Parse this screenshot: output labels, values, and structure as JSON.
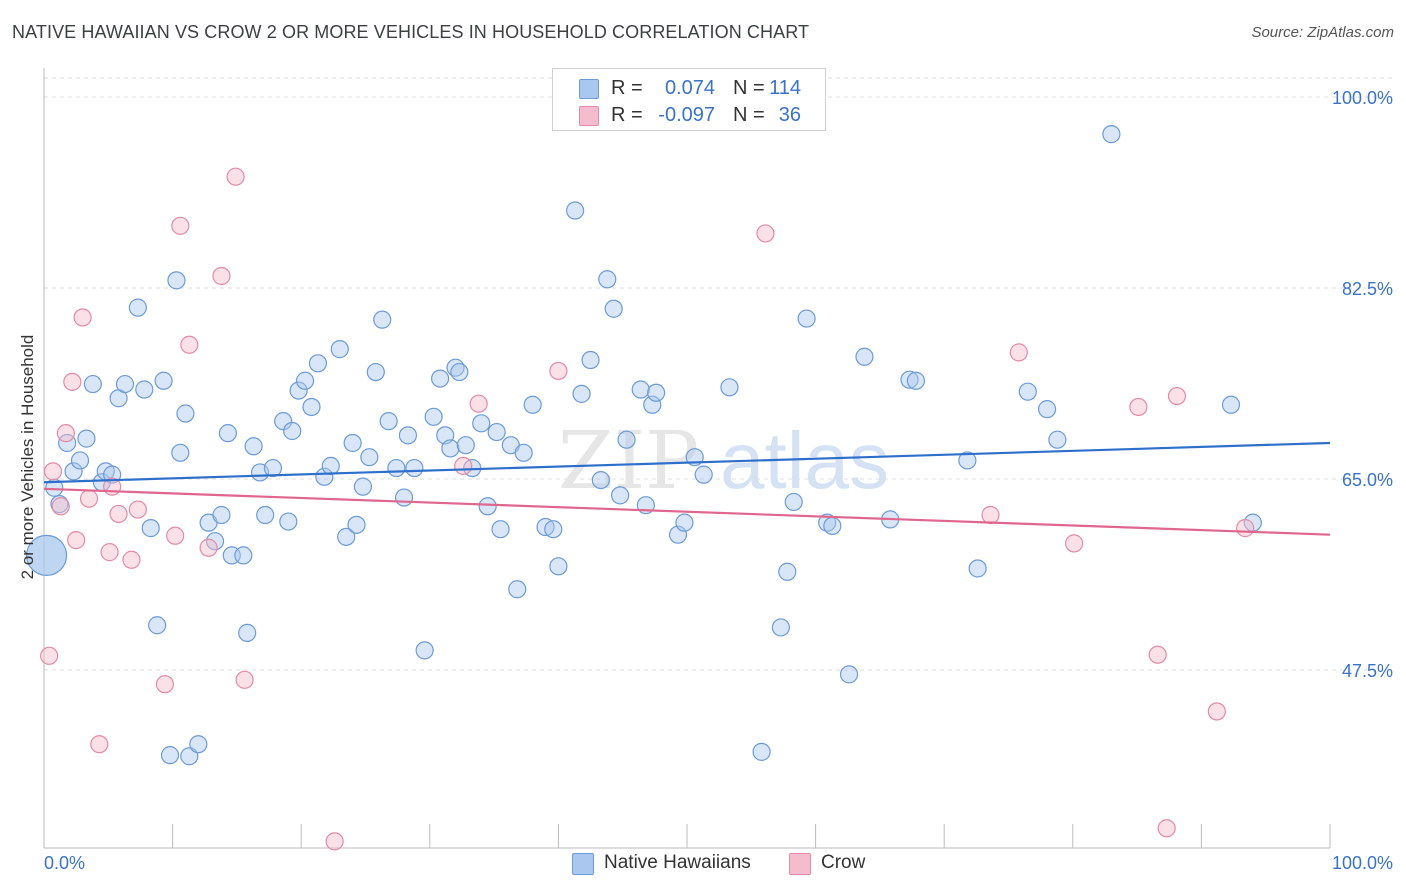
{
  "header": {
    "title": "NATIVE HAWAIIAN VS CROW 2 OR MORE VEHICLES IN HOUSEHOLD CORRELATION CHART",
    "source": "Source: ZipAtlas.com"
  },
  "legend": {
    "rows": [
      {
        "r_label": "R =",
        "r_value": "0.074",
        "n_label": "N =",
        "n_value": "114"
      },
      {
        "r_label": "R =",
        "r_value": "-0.097",
        "n_label": "N =",
        "n_value": "36"
      }
    ],
    "series_names": [
      "Native Hawaiians",
      "Crow"
    ]
  },
  "watermark": {
    "zip": "ZIP",
    "atlas": "atlas"
  },
  "colors": {
    "blue_fill": "#aac8ef",
    "blue_stroke": "#6c9bd8",
    "blue_line": "#2e6fcc",
    "pink_fill": "#f5bccd",
    "pink_stroke": "#e58aa6",
    "pink_line": "#e0668e",
    "tick_label": "#3a72c8"
  },
  "chart_data": {
    "type": "scatter",
    "title": "NATIVE HAWAIIAN VS CROW 2 OR MORE VEHICLES IN HOUSEHOLD CORRELATION CHART",
    "xlabel": "",
    "ylabel": "2 or more Vehicles in Household",
    "xlim": [
      0,
      100
    ],
    "ylim": [
      28.9,
      102
    ],
    "x_tick_labels": [
      "0.0%",
      "100.0%"
    ],
    "y_ticks": [
      {
        "value": 100.0,
        "label": "100.0%"
      },
      {
        "value": 82.5,
        "label": "82.5%"
      },
      {
        "value": 65.0,
        "label": "65.0%"
      },
      {
        "value": 47.5,
        "label": "47.5%"
      }
    ],
    "grid": "horizontal dashed",
    "legend_position": "top-center",
    "series": [
      {
        "name": "Native Hawaiians",
        "r": 0.074,
        "n": 114,
        "trend": {
          "x": [
            0,
            100
          ],
          "y": [
            64.7,
            68.3
          ]
        },
        "points": [
          [
            0.2,
            58.0
          ],
          [
            0.8,
            64.2
          ],
          [
            1.2,
            62.7
          ],
          [
            1.8,
            68.3
          ],
          [
            2.3,
            65.7
          ],
          [
            2.8,
            66.7
          ],
          [
            3.3,
            68.7
          ],
          [
            3.8,
            73.7
          ],
          [
            4.5,
            64.7
          ],
          [
            4.8,
            65.7
          ],
          [
            5.3,
            65.4
          ],
          [
            5.8,
            72.4
          ],
          [
            6.3,
            73.7
          ],
          [
            7.3,
            80.7
          ],
          [
            7.8,
            73.2
          ],
          [
            8.3,
            60.5
          ],
          [
            8.8,
            51.6
          ],
          [
            9.3,
            74.0
          ],
          [
            9.8,
            39.7
          ],
          [
            10.3,
            83.2
          ],
          [
            10.6,
            67.4
          ],
          [
            11.0,
            71.0
          ],
          [
            11.3,
            39.6
          ],
          [
            12.0,
            40.7
          ],
          [
            12.8,
            61.0
          ],
          [
            13.3,
            59.3
          ],
          [
            13.8,
            61.7
          ],
          [
            14.3,
            69.2
          ],
          [
            14.6,
            58.0
          ],
          [
            15.5,
            58.0
          ],
          [
            15.8,
            50.9
          ],
          [
            16.3,
            68.0
          ],
          [
            16.8,
            65.6
          ],
          [
            17.2,
            61.7
          ],
          [
            17.8,
            66.0
          ],
          [
            18.6,
            70.3
          ],
          [
            19.0,
            61.1
          ],
          [
            19.3,
            69.4
          ],
          [
            19.8,
            73.1
          ],
          [
            20.3,
            74.0
          ],
          [
            20.8,
            71.6
          ],
          [
            21.3,
            75.6
          ],
          [
            21.8,
            65.2
          ],
          [
            22.3,
            66.2
          ],
          [
            23.0,
            76.9
          ],
          [
            23.5,
            59.7
          ],
          [
            24.0,
            68.3
          ],
          [
            24.3,
            60.8
          ],
          [
            24.8,
            64.3
          ],
          [
            25.3,
            67.0
          ],
          [
            25.8,
            74.8
          ],
          [
            26.3,
            79.6
          ],
          [
            26.8,
            70.3
          ],
          [
            27.4,
            66.0
          ],
          [
            28.0,
            63.3
          ],
          [
            28.3,
            69.0
          ],
          [
            28.8,
            66.0
          ],
          [
            29.6,
            49.3
          ],
          [
            30.3,
            70.7
          ],
          [
            30.8,
            74.2
          ],
          [
            31.2,
            69.0
          ],
          [
            31.6,
            67.8
          ],
          [
            32.0,
            75.2
          ],
          [
            32.3,
            74.8
          ],
          [
            32.8,
            68.1
          ],
          [
            33.3,
            66.0
          ],
          [
            34.5,
            62.5
          ],
          [
            34.0,
            70.1
          ],
          [
            35.2,
            69.3
          ],
          [
            35.5,
            60.4
          ],
          [
            36.3,
            68.1
          ],
          [
            36.8,
            54.9
          ],
          [
            37.3,
            67.4
          ],
          [
            38.0,
            71.8
          ],
          [
            39.0,
            60.6
          ],
          [
            39.6,
            60.4
          ],
          [
            40.0,
            57.0
          ],
          [
            41.3,
            89.6
          ],
          [
            41.8,
            72.8
          ],
          [
            42.5,
            75.9
          ],
          [
            43.3,
            64.9
          ],
          [
            43.8,
            83.3
          ],
          [
            44.3,
            80.6
          ],
          [
            44.8,
            63.5
          ],
          [
            45.3,
            68.6
          ],
          [
            46.4,
            73.2
          ],
          [
            46.8,
            62.6
          ],
          [
            47.3,
            71.8
          ],
          [
            47.6,
            72.9
          ],
          [
            49.3,
            59.9
          ],
          [
            49.8,
            61.0
          ],
          [
            50.6,
            67.0
          ],
          [
            51.3,
            65.4
          ],
          [
            53.3,
            73.4
          ],
          [
            55.8,
            40.0
          ],
          [
            57.3,
            51.4
          ],
          [
            57.8,
            56.5
          ],
          [
            58.3,
            62.9
          ],
          [
            59.3,
            79.7
          ],
          [
            60.9,
            61.0
          ],
          [
            61.3,
            60.7
          ],
          [
            62.6,
            47.1
          ],
          [
            63.8,
            76.2
          ],
          [
            65.8,
            61.3
          ],
          [
            67.3,
            74.1
          ],
          [
            67.8,
            74.0
          ],
          [
            71.8,
            66.7
          ],
          [
            72.6,
            56.8
          ],
          [
            76.5,
            73.0
          ],
          [
            78.0,
            71.4
          ],
          [
            78.8,
            68.6
          ],
          [
            83.0,
            96.6
          ],
          [
            92.3,
            71.8
          ],
          [
            94.0,
            61.0
          ]
        ]
      },
      {
        "name": "Crow",
        "r": -0.097,
        "n": 36,
        "trend": {
          "x": [
            0,
            100
          ],
          "y": [
            64.1,
            59.9
          ]
        },
        "points": [
          [
            0.4,
            48.8
          ],
          [
            0.7,
            65.7
          ],
          [
            1.3,
            62.5
          ],
          [
            1.7,
            69.2
          ],
          [
            2.2,
            73.9
          ],
          [
            2.5,
            59.4
          ],
          [
            3.0,
            79.8
          ],
          [
            3.5,
            63.2
          ],
          [
            4.3,
            40.7
          ],
          [
            5.1,
            58.3
          ],
          [
            5.3,
            64.3
          ],
          [
            5.8,
            61.8
          ],
          [
            6.8,
            57.6
          ],
          [
            7.3,
            62.2
          ],
          [
            9.4,
            46.2
          ],
          [
            10.2,
            59.8
          ],
          [
            10.6,
            88.2
          ],
          [
            11.3,
            77.3
          ],
          [
            12.8,
            58.7
          ],
          [
            13.8,
            83.6
          ],
          [
            14.9,
            92.7
          ],
          [
            15.6,
            46.6
          ],
          [
            22.6,
            31.8
          ],
          [
            32.6,
            66.2
          ],
          [
            33.8,
            71.9
          ],
          [
            40.0,
            74.9
          ],
          [
            56.1,
            87.5
          ],
          [
            73.6,
            61.7
          ],
          [
            75.8,
            76.6
          ],
          [
            80.1,
            59.1
          ],
          [
            85.1,
            71.6
          ],
          [
            86.6,
            48.9
          ],
          [
            87.3,
            33.0
          ],
          [
            88.1,
            72.6
          ],
          [
            91.2,
            43.7
          ],
          [
            93.4,
            60.5
          ]
        ]
      }
    ]
  }
}
